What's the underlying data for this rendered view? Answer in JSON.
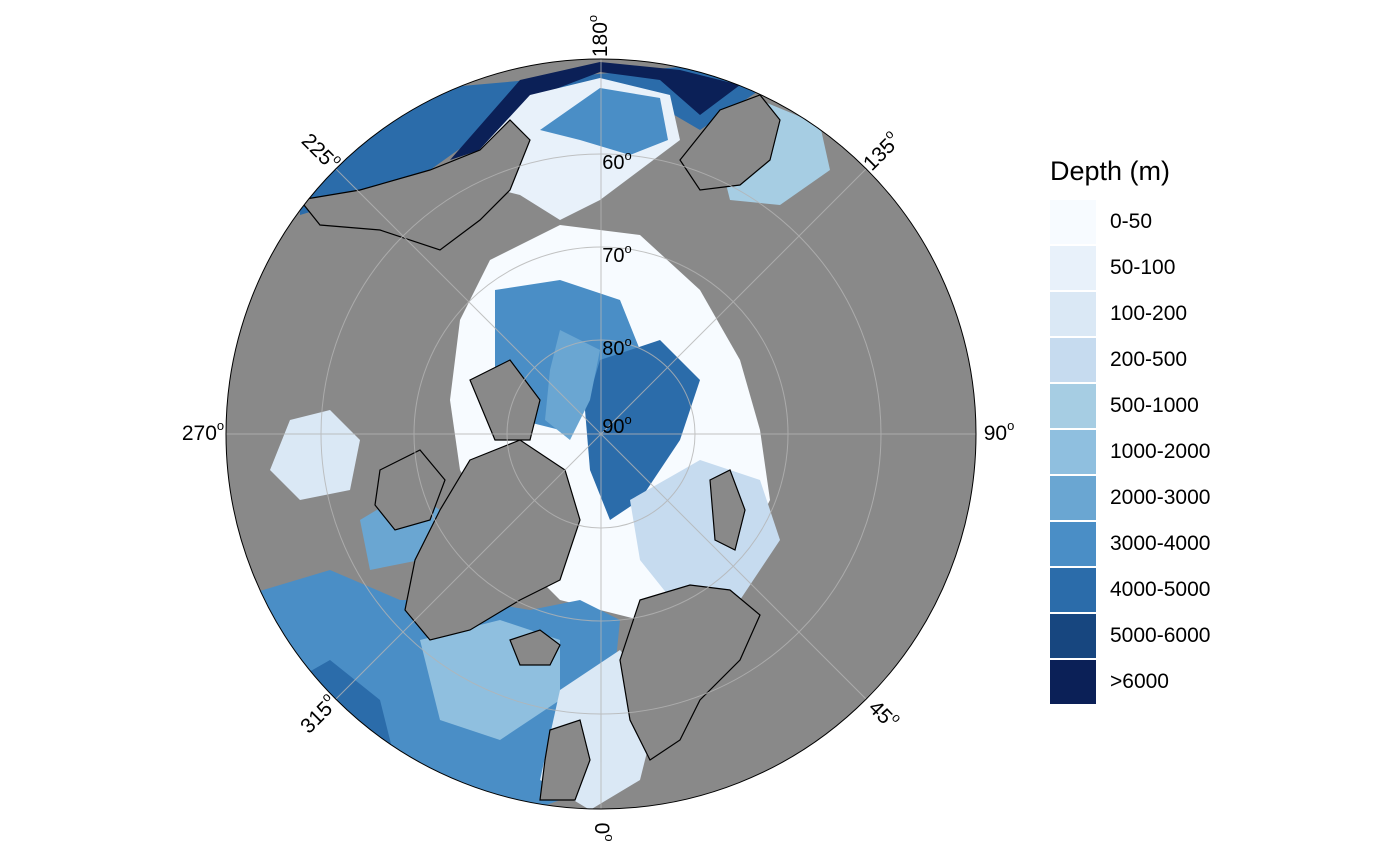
{
  "map": {
    "longitude_labels": [
      {
        "value": "180",
        "angle_deg": 180
      },
      {
        "value": "135",
        "angle_deg": 135
      },
      {
        "value": "90",
        "angle_deg": 90
      },
      {
        "value": "45",
        "angle_deg": 45
      },
      {
        "value": "0",
        "angle_deg": 0
      },
      {
        "value": "315",
        "angle_deg": 315
      },
      {
        "value": "270",
        "angle_deg": 270
      },
      {
        "value": "225",
        "angle_deg": 225
      }
    ],
    "latitude_labels": [
      "60",
      "70",
      "80",
      "90"
    ],
    "degree_symbol": "o",
    "colors": {
      "land": "#898989",
      "ocean_outline": "#000000",
      "grid": "#b4b4b4"
    }
  },
  "legend": {
    "title": "Depth (m)",
    "items": [
      {
        "label": "0-50",
        "color": "#f7fbff"
      },
      {
        "label": "50-100",
        "color": "#e8f1fa"
      },
      {
        "label": "100-200",
        "color": "#dae8f5"
      },
      {
        "label": "200-500",
        "color": "#c6dbef"
      },
      {
        "label": "500-1000",
        "color": "#a6cde3"
      },
      {
        "label": "1000-2000",
        "color": "#8fbfdf"
      },
      {
        "label": "2000-3000",
        "color": "#6aa6d2"
      },
      {
        "label": "3000-4000",
        "color": "#4a8ec6"
      },
      {
        "label": "4000-5000",
        "color": "#2b6caa"
      },
      {
        "label": "5000-6000",
        "color": "#17467f"
      },
      {
        "label": ">6000",
        "color": "#0b2057"
      }
    ]
  }
}
